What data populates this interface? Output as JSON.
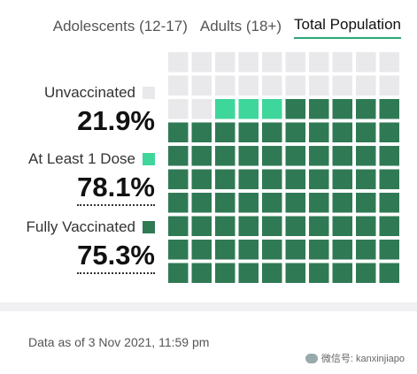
{
  "tabs": [
    {
      "label": "Adolescents (12-17)",
      "active": false
    },
    {
      "label": "Adults (18+)",
      "active": false
    },
    {
      "label": "Total Population",
      "active": true
    }
  ],
  "legend": [
    {
      "label": "Unvaccinated",
      "value": "21.9%",
      "color": "#e9e9ec"
    },
    {
      "label": "At Least 1 Dose",
      "value": "78.1%",
      "color": "#3fd69b"
    },
    {
      "label": "Fully Vaccinated",
      "value": "75.3%",
      "color": "#2f7a55"
    }
  ],
  "chart_data": {
    "type": "waffle",
    "rows": 10,
    "cols": 10,
    "series": [
      {
        "name": "Unvaccinated",
        "value": 21.9,
        "color": "#e9e9ec"
      },
      {
        "name": "At Least 1 Dose",
        "value": 78.1,
        "color": "#3fd69b"
      },
      {
        "name": "Fully Vaccinated",
        "value": 75.3,
        "color": "#2f7a55"
      }
    ],
    "cells": {
      "fully_vaccinated": 75,
      "at_least_one_only": 3,
      "unvaccinated": 22
    }
  },
  "footer": {
    "note": "Data as of 3 Nov 2021, 11:59 pm"
  },
  "watermark": {
    "text": "微信号: kanxinjiapo"
  }
}
